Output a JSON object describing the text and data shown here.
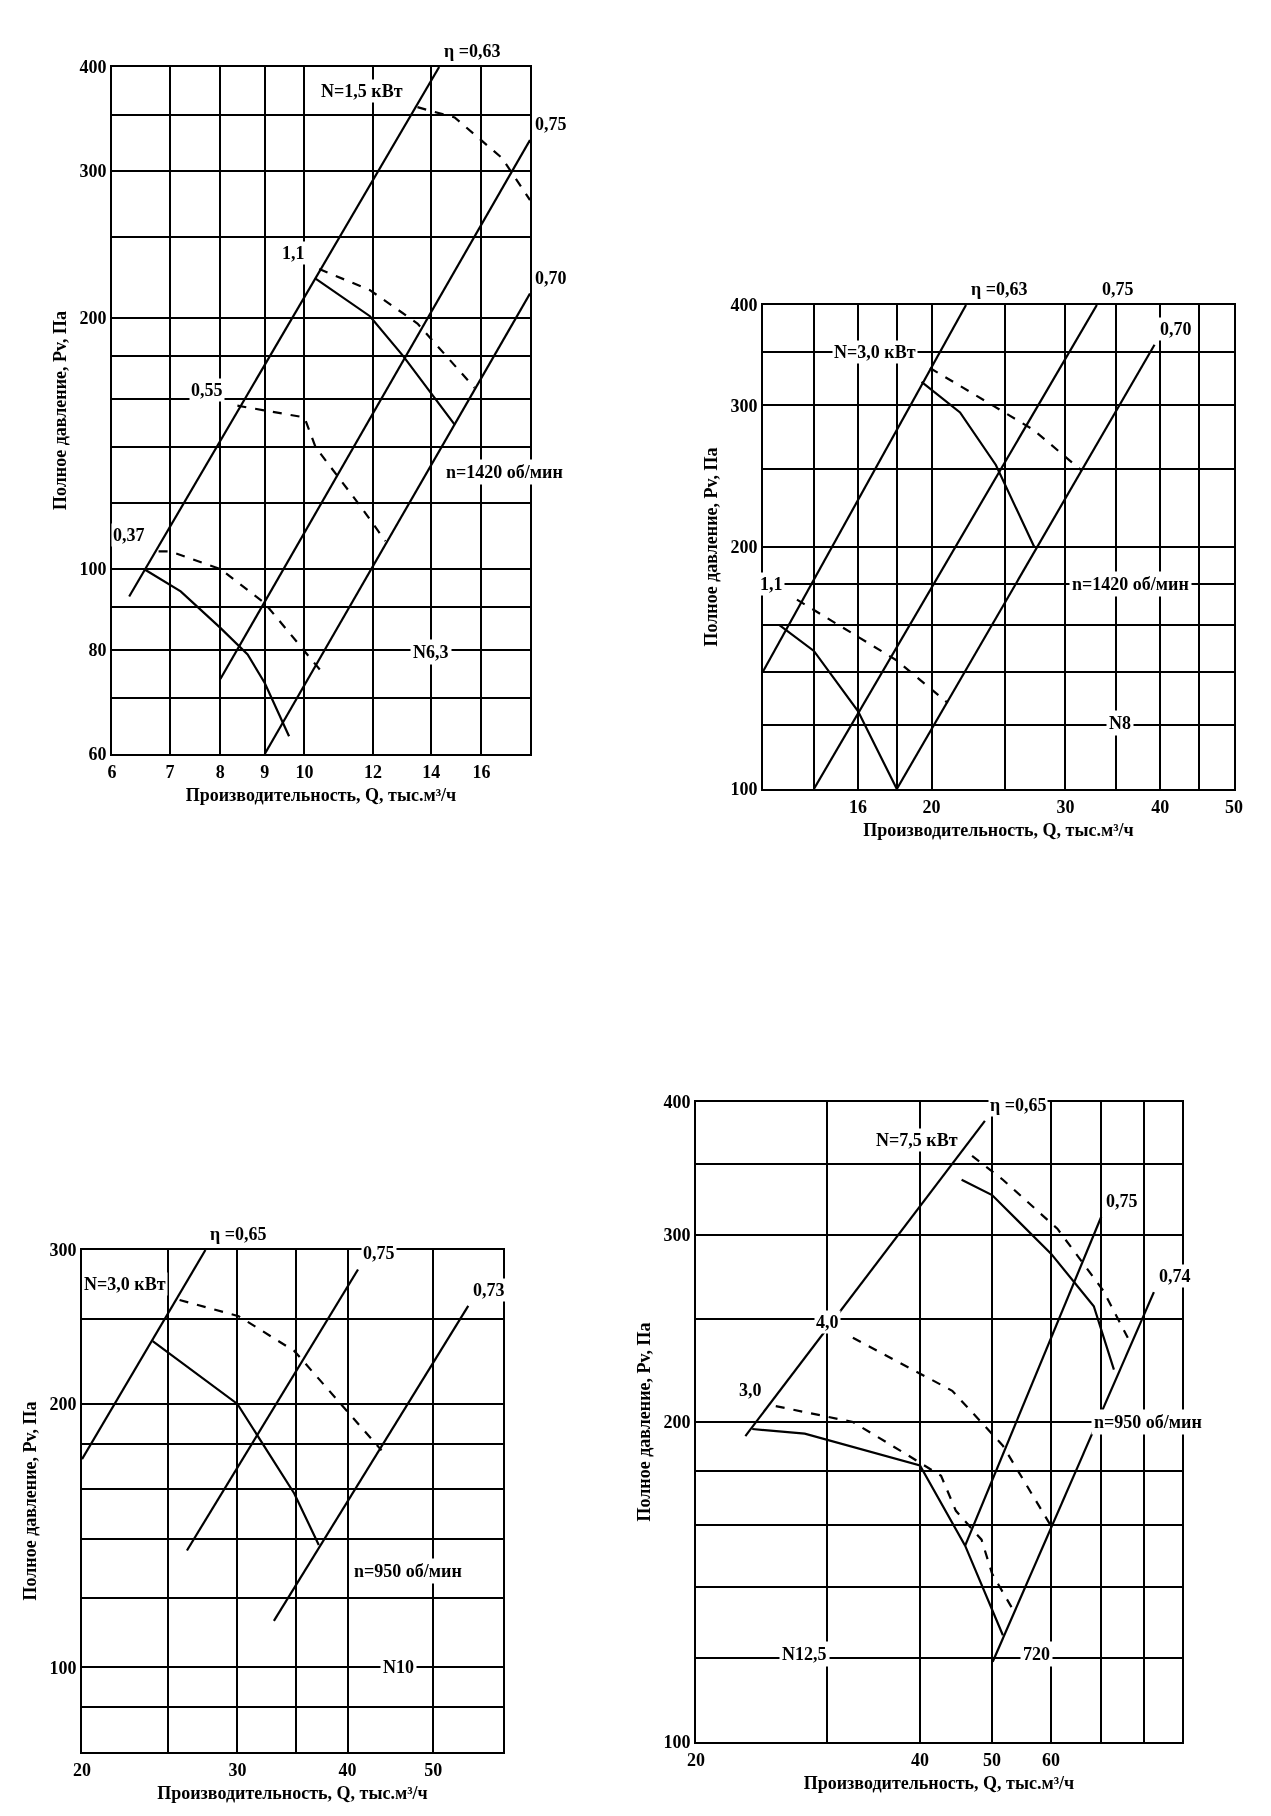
{
  "chart_data": [
    {
      "type": "line",
      "log": "xy",
      "grid": true,
      "line_style": "solid",
      "xlabel": "Производительность, Q, тыс.м³/ч",
      "ylabel": "Полное давление, Pv, Па",
      "xlim": [
        6,
        18.2
      ],
      "xticks": [
        6,
        7,
        8,
        9,
        10,
        12,
        14,
        16
      ],
      "ylim": [
        60,
        400
      ],
      "yticks": [
        60,
        {
          "value": 70,
          "label": null
        },
        80,
        {
          "value": 90,
          "label": null
        },
        100,
        {
          "value": 120,
          "label": null
        },
        {
          "value": 140,
          "label": null
        },
        {
          "value": 160,
          "label": null
        },
        {
          "value": 180,
          "label": null
        },
        200,
        {
          "value": 250,
          "label": null
        },
        300,
        {
          "value": 350,
          "label": null
        },
        400
      ],
      "series": [
        {
          "name": "η =0,63",
          "color": "#000000",
          "x": [
            6.28,
            14.3
          ],
          "values": [
            92.7,
            400
          ]
        },
        {
          "name": "0,75",
          "color": "#000000",
          "x": [
            8,
            18.2
          ],
          "values": [
            73.8,
            327
          ]
        },
        {
          "name": "0,70",
          "color": "#000000",
          "x": [
            9,
            18.2
          ],
          "values": [
            60,
            214
          ]
        },
        {
          "color": "#000000",
          "x": [
            6.53,
            7.2,
            8,
            8.6,
            9,
            9.6
          ],
          "values": [
            100,
            94,
            85,
            79,
            73,
            63
          ]
        },
        {
          "name": "0,37",
          "color": "#000000",
          "line_style": "dashed",
          "x": [
            6.79,
            7,
            8,
            9,
            10.5
          ],
          "values": [
            105,
            105,
            100,
            91,
            75
          ]
        },
        {
          "color": "#000000",
          "x": [
            10.3,
            11.9,
            13,
            14.9
          ],
          "values": [
            223,
            201,
            180,
            149
          ]
        },
        {
          "name": "1,1",
          "color": "#000000",
          "line_style": "dashed",
          "x": [
            10.4,
            11.9,
            13.5,
            15.7
          ],
          "values": [
            229,
            216,
            197,
            165
          ]
        },
        {
          "name": "0,55",
          "color": "#000000",
          "line_style": "dashed",
          "x": [
            8.37,
            10,
            10.3,
            11.6,
            12.4
          ],
          "values": [
            157,
            152,
            140,
            119,
            108
          ]
        },
        {
          "name": "N=1,5 кВт",
          "color": "#000000",
          "line_style": "dashed",
          "x": [
            13.5,
            14.9,
            16.9,
            18.2
          ],
          "values": [
            358,
            348,
            311,
            277
          ]
        }
      ],
      "annotations": [
        "n=1420 об/мин",
        "N6,3"
      ]
    },
    {
      "type": "line",
      "log": "xy",
      "grid": true,
      "line_style": "solid",
      "xlabel": "Производительность, Q, тыс.м³/ч",
      "ylabel": "Полное давление, Pv, Па",
      "xlim": [
        12,
        50
      ],
      "xticks": [
        {
          "value": 14,
          "label": null
        },
        16,
        {
          "value": 18,
          "label": null
        },
        20,
        {
          "value": 25,
          "label": null
        },
        30,
        {
          "value": 35,
          "label": null
        },
        40,
        {
          "value": 45,
          "label": null
        },
        50
      ],
      "ylim": [
        100,
        400
      ],
      "yticks": [
        100,
        {
          "value": 120,
          "label": null
        },
        {
          "value": 140,
          "label": null
        },
        {
          "value": 160,
          "label": null
        },
        {
          "value": 180,
          "label": null
        },
        200,
        {
          "value": 250,
          "label": null
        },
        300,
        {
          "value": 350,
          "label": null
        },
        400
      ],
      "series": [
        {
          "name": "η =0,63",
          "color": "#000000",
          "x": [
            12,
            22.2
          ],
          "values": [
            140,
            400
          ]
        },
        {
          "name": "0,75",
          "color": "#000000",
          "x": [
            14,
            33
          ],
          "values": [
            100,
            400
          ]
        },
        {
          "name": "0,70",
          "color": "#000000",
          "x": [
            18,
            39.3
          ],
          "values": [
            100,
            357
          ]
        },
        {
          "color": "#000000",
          "x": [
            12.6,
            14,
            16,
            18
          ],
          "values": [
            160,
            148.5,
            125,
            100
          ]
        },
        {
          "color": "#000000",
          "x": [
            19.4,
            21.8,
            24.3,
            27.3
          ],
          "values": [
            321,
            294,
            253,
            200
          ]
        },
        {
          "name": "1,1",
          "color": "#000000",
          "line_style": "dashed",
          "x": [
            13.3,
            18,
            21
          ],
          "values": [
            172,
            144.5,
            128
          ]
        },
        {
          "name": "N=3,0 кВт",
          "color": "#000000",
          "line_style": "dashed",
          "x": [
            19.9,
            27.2,
            31.5
          ],
          "values": [
            334,
            280,
            249
          ]
        }
      ],
      "annotations": [
        "n=1420 об/мин",
        "N8"
      ]
    },
    {
      "type": "line",
      "log": "xy",
      "grid": true,
      "line_style": "solid",
      "xlabel": "Производительность, Q, тыс.м³/ч",
      "ylabel": "Полное давление, Pv, Па",
      "xlim": [
        20,
        60
      ],
      "xticks": [
        20,
        {
          "value": 25,
          "label": null
        },
        30,
        {
          "value": 35,
          "label": null
        },
        40,
        50
      ],
      "ylim": [
        80,
        300
      ],
      "yticks": [
        {
          "value": 90,
          "label": null
        },
        100,
        {
          "value": 120,
          "label": null
        },
        {
          "value": 140,
          "label": null
        },
        {
          "value": 160,
          "label": null
        },
        {
          "value": 180,
          "label": null
        },
        200,
        {
          "value": 250,
          "label": null
        },
        300
      ],
      "series": [
        {
          "name": "η =0,65",
          "color": "#000000",
          "x": [
            20,
            27.6
          ],
          "values": [
            173,
            300
          ]
        },
        {
          "name": "0,75",
          "color": "#000000",
          "x": [
            26.3,
            41.1
          ],
          "values": [
            136,
            285
          ]
        },
        {
          "name": "0,73",
          "color": "#000000",
          "x": [
            33,
            54.8
          ],
          "values": [
            113,
            259
          ]
        },
        {
          "color": "#000000",
          "x": [
            24.05,
            30,
            34.8,
            37.1
          ],
          "values": [
            236,
            200,
            158,
            138
          ]
        },
        {
          "name": "N=3,0 кВт",
          "color": "#000000",
          "line_style": "dashed",
          "x": [
            25.8,
            30.1,
            34.8,
            39.3,
            43.7
          ],
          "values": [
            263,
            252,
            230,
            200,
            177
          ]
        }
      ],
      "annotations": [
        "n=950 об/мин",
        "N10"
      ]
    },
    {
      "type": "line",
      "log": "xy",
      "grid": true,
      "line_style": "solid",
      "xlabel": "Производительность, Q, тыс.м³/ч",
      "ylabel": "Полное давление, Pv, Па",
      "xlim": [
        20,
        90
      ],
      "xticks": [
        20,
        {
          "value": 30,
          "label": null
        },
        40,
        50,
        60,
        {
          "value": 70,
          "label": null
        },
        {
          "value": 80,
          "label": null
        }
      ],
      "ylim": [
        100,
        400
      ],
      "yticks": [
        100,
        {
          "value": 120,
          "label": null
        },
        {
          "value": 140,
          "label": null
        },
        {
          "value": 160,
          "label": null
        },
        {
          "value": 180,
          "label": null
        },
        200,
        {
          "value": 250,
          "label": null
        },
        300,
        {
          "value": 350,
          "label": null
        },
        400
      ],
      "series": [
        {
          "name": "η =0,65",
          "color": "#000000",
          "x": [
            23.3,
            48.9
          ],
          "values": [
            194,
            384
          ]
        },
        {
          "name": "0,75",
          "color": "#000000",
          "x": [
            46,
            70.1
          ],
          "values": [
            153,
            312
          ]
        },
        {
          "name": "0,74",
          "color": "#000000",
          "x": [
            50.1,
            82.5
          ],
          "values": [
            119,
            265
          ]
        },
        {
          "color": "#000000",
          "x": [
            23.8,
            28,
            40,
            46,
            51.7
          ],
          "values": [
            197,
            195,
            182,
            153,
            126
          ]
        },
        {
          "color": "#000000",
          "x": [
            45.5,
            50,
            60,
            68.5,
            72.9
          ],
          "values": [
            338,
            327,
            288,
            257,
            224
          ]
        },
        {
          "name": "3,0",
          "color": "#000000",
          "line_style": "dashed",
          "x": [
            25.6,
            32.5,
            38.1,
            42.7,
            44.7,
            48.4,
            50,
            53.4
          ],
          "values": [
            207,
            200,
            187,
            178,
            165,
            155,
            144,
            133
          ]
        },
        {
          "name": "4,0",
          "color": "#000000",
          "line_style": "dashed",
          "x": [
            32.5,
            44.2,
            51.7,
            59.9
          ],
          "values": [
            240,
            214,
            190,
            160
          ]
        },
        {
          "name": "N=7,5 кВт",
          "color": "#000000",
          "line_style": "dashed",
          "x": [
            47,
            51.7,
            61.2,
            70.5,
            76.1
          ],
          "values": [
            356,
            338,
            304,
            266,
            240
          ]
        }
      ],
      "annotations": [
        "n=950 об/мин",
        "720",
        "N12,5"
      ]
    }
  ]
}
